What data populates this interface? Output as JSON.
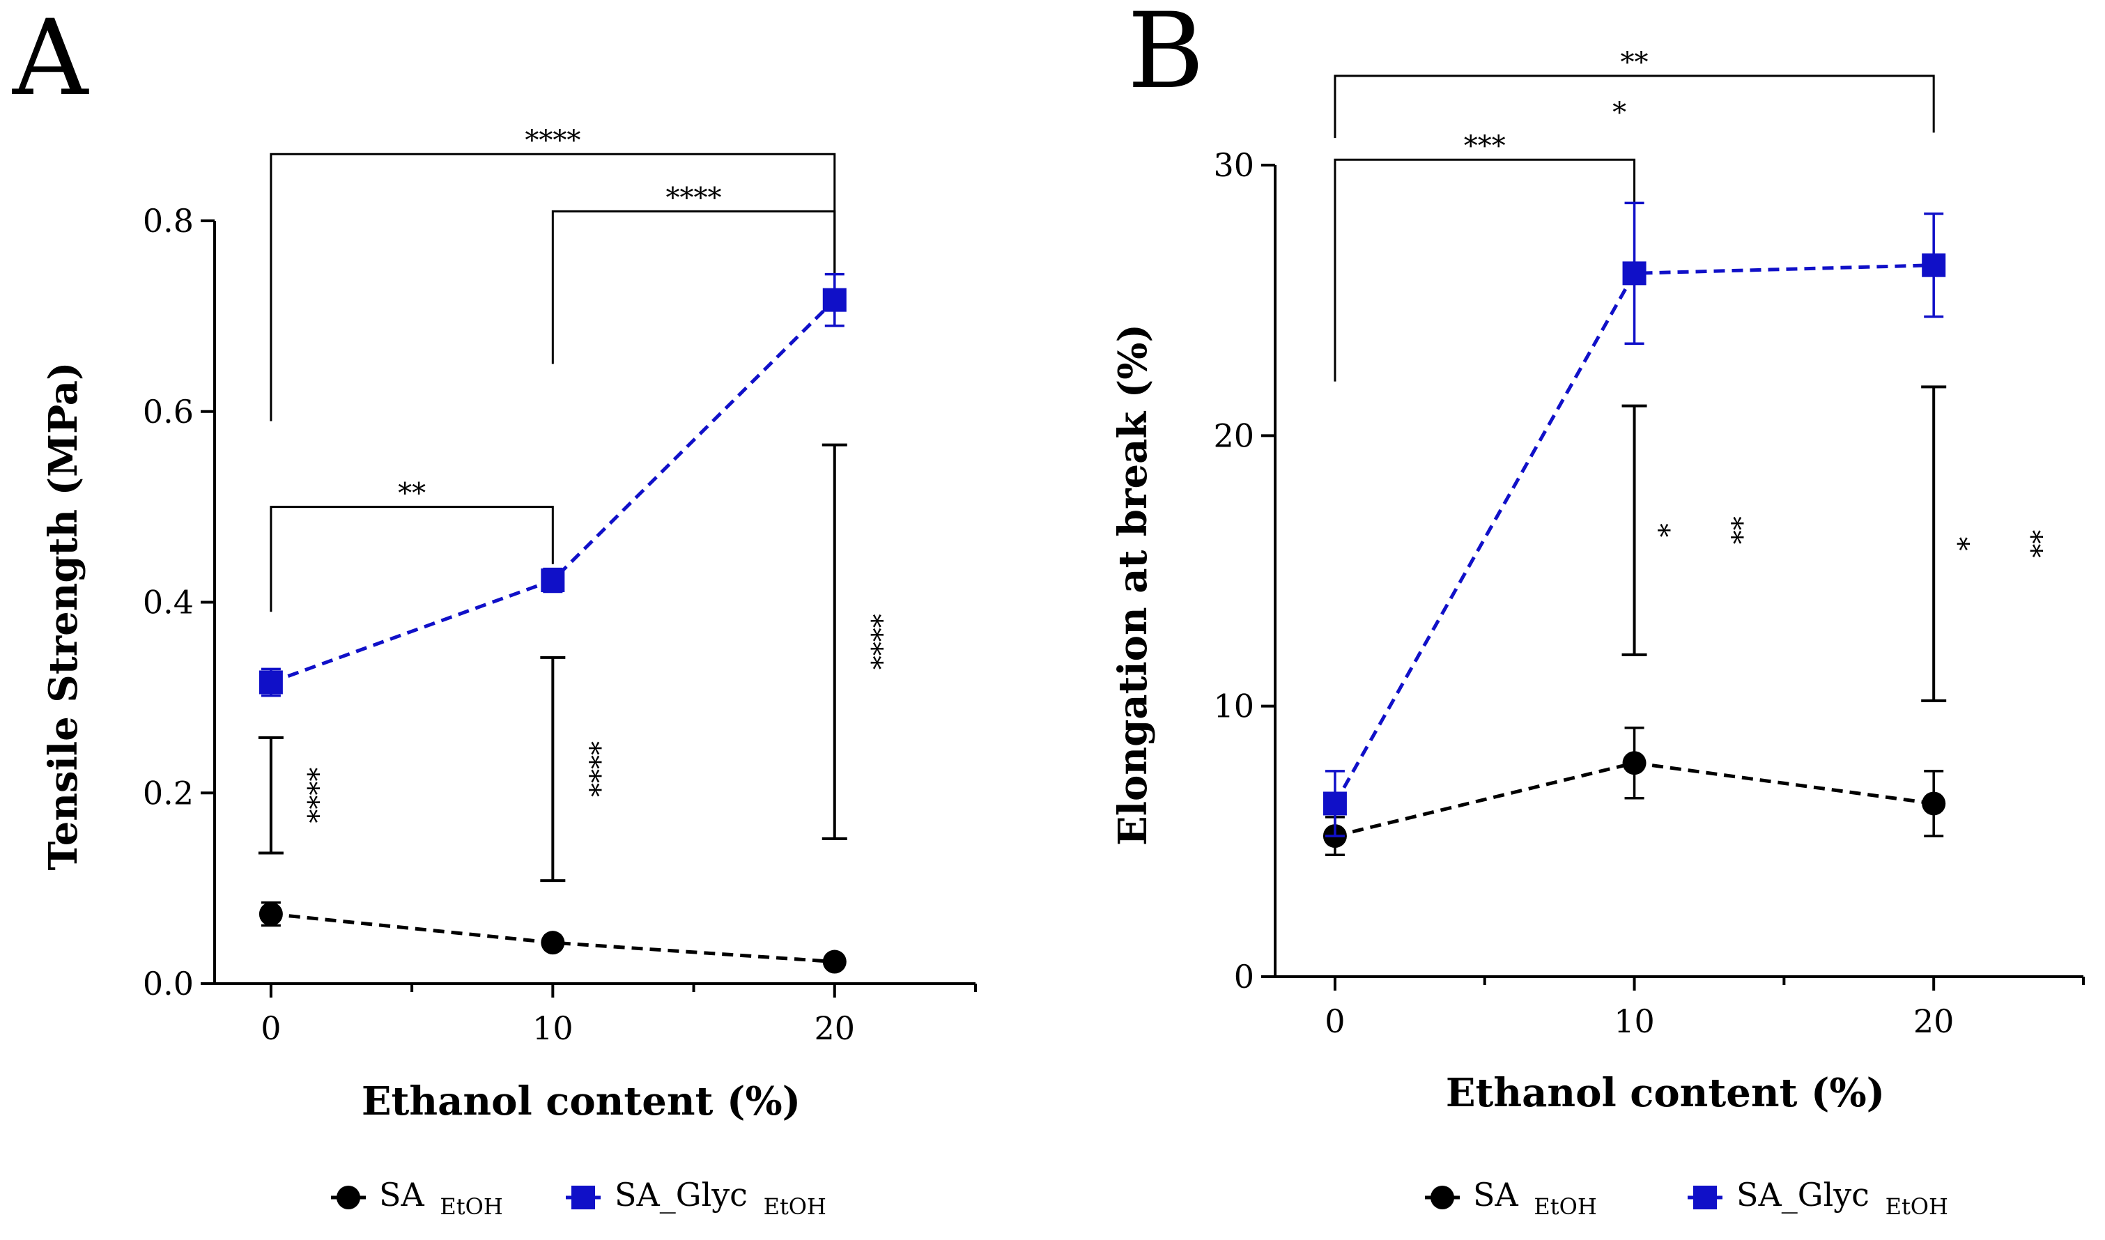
{
  "colors": {
    "sa": "#000000",
    "glyc": "#1010c8",
    "axis": "#000000"
  },
  "chart_data": [
    {
      "panel": "A",
      "type": "line",
      "xlabel": "Ethanol content (%)",
      "ylabel": "Tensile Strength (MPa)",
      "x": [
        0,
        10,
        20
      ],
      "xlim": [
        -2,
        25
      ],
      "ylim": [
        0,
        0.8
      ],
      "xticks": [
        "0",
        "10",
        "20"
      ],
      "yticks": [
        "0.0",
        "0.2",
        "0.4",
        "0.6",
        "0.8"
      ],
      "series": [
        {
          "name": "SA",
          "subscript": "EtOH",
          "marker": "circle",
          "line": "dashed",
          "color": "#000000",
          "values": [
            0.073,
            0.043,
            0.023
          ],
          "errors": [
            0.012,
            0.005,
            0.004
          ]
        },
        {
          "name": "SA_Glyc",
          "subscript": "EtOH",
          "marker": "square",
          "line": "dashed",
          "color": "#1010c8",
          "values": [
            0.316,
            0.423,
            0.717
          ],
          "errors": [
            0.014,
            0.012,
            0.027
          ]
        }
      ],
      "brackets": [
        {
          "x1": 0,
          "x2": 20,
          "top": 0.87,
          "y1": 0.59,
          "y2": 0.73,
          "label": "****"
        },
        {
          "x1": 10,
          "x2": 20,
          "top": 0.81,
          "y1": 0.65,
          "y2": 0.74,
          "label": "****"
        },
        {
          "x1": 0,
          "x2": 10,
          "top": 0.5,
          "y1": 0.39,
          "y2": 0.44,
          "label": "**"
        }
      ],
      "vbars": [
        {
          "x": 0,
          "y_low": 0.137,
          "y_high": 0.258,
          "label": "****"
        },
        {
          "x": 10,
          "y_low": 0.108,
          "y_high": 0.342,
          "label": "****"
        },
        {
          "x": 20,
          "y_low": 0.152,
          "y_high": 0.565,
          "label": "****"
        }
      ]
    },
    {
      "panel": "B",
      "type": "line",
      "xlabel": "Ethanol content (%)",
      "ylabel": "Elongation at break (%)",
      "x": [
        0,
        10,
        20
      ],
      "xlim": [
        -2,
        25
      ],
      "ylim": [
        0,
        30
      ],
      "xticks": [
        "0",
        "10",
        "20"
      ],
      "yticks": [
        "0",
        "10",
        "20",
        "30"
      ],
      "series": [
        {
          "name": "SA",
          "subscript": "EtOH",
          "marker": "circle",
          "line": "dashed",
          "color": "#000000",
          "values": [
            5.2,
            7.9,
            6.4
          ],
          "errors": [
            0.7,
            1.3,
            1.2
          ]
        },
        {
          "name": "SA_Glyc",
          "subscript": "EtOH",
          "marker": "square",
          "line": "dashed",
          "color": "#1010c8",
          "values": [
            6.4,
            26.0,
            26.3
          ],
          "errors": [
            1.2,
            2.6,
            1.9
          ]
        }
      ],
      "brackets": [
        {
          "x1": 0,
          "x2": 20,
          "top": 33.3,
          "y1": 31.0,
          "y2": 31.2,
          "label": "**"
        },
        {
          "x1": 0,
          "x2": 10,
          "top": 30.2,
          "y1": 22.0,
          "y2": 28.6,
          "label": "***"
        }
      ],
      "text_annotations": [
        {
          "x": 9.5,
          "y": 31.6,
          "label": "*"
        }
      ],
      "vbars": [
        {
          "x": 10,
          "y_low": 11.9,
          "y_high": 21.1,
          "labels": [
            "*",
            "**"
          ]
        },
        {
          "x": 20,
          "y_low": 10.2,
          "y_high": 21.8,
          "labels": [
            "*",
            "**"
          ]
        }
      ]
    }
  ],
  "legend_a": {
    "sa": "SA",
    "sa_sub": "EtOH",
    "glyc": "SA_Glyc",
    "glyc_sub": "EtOH"
  },
  "legend_b": {
    "sa": "SA",
    "sa_sub": "EtOH",
    "glyc": "SA_Glyc",
    "glyc_sub": "EtOH"
  }
}
